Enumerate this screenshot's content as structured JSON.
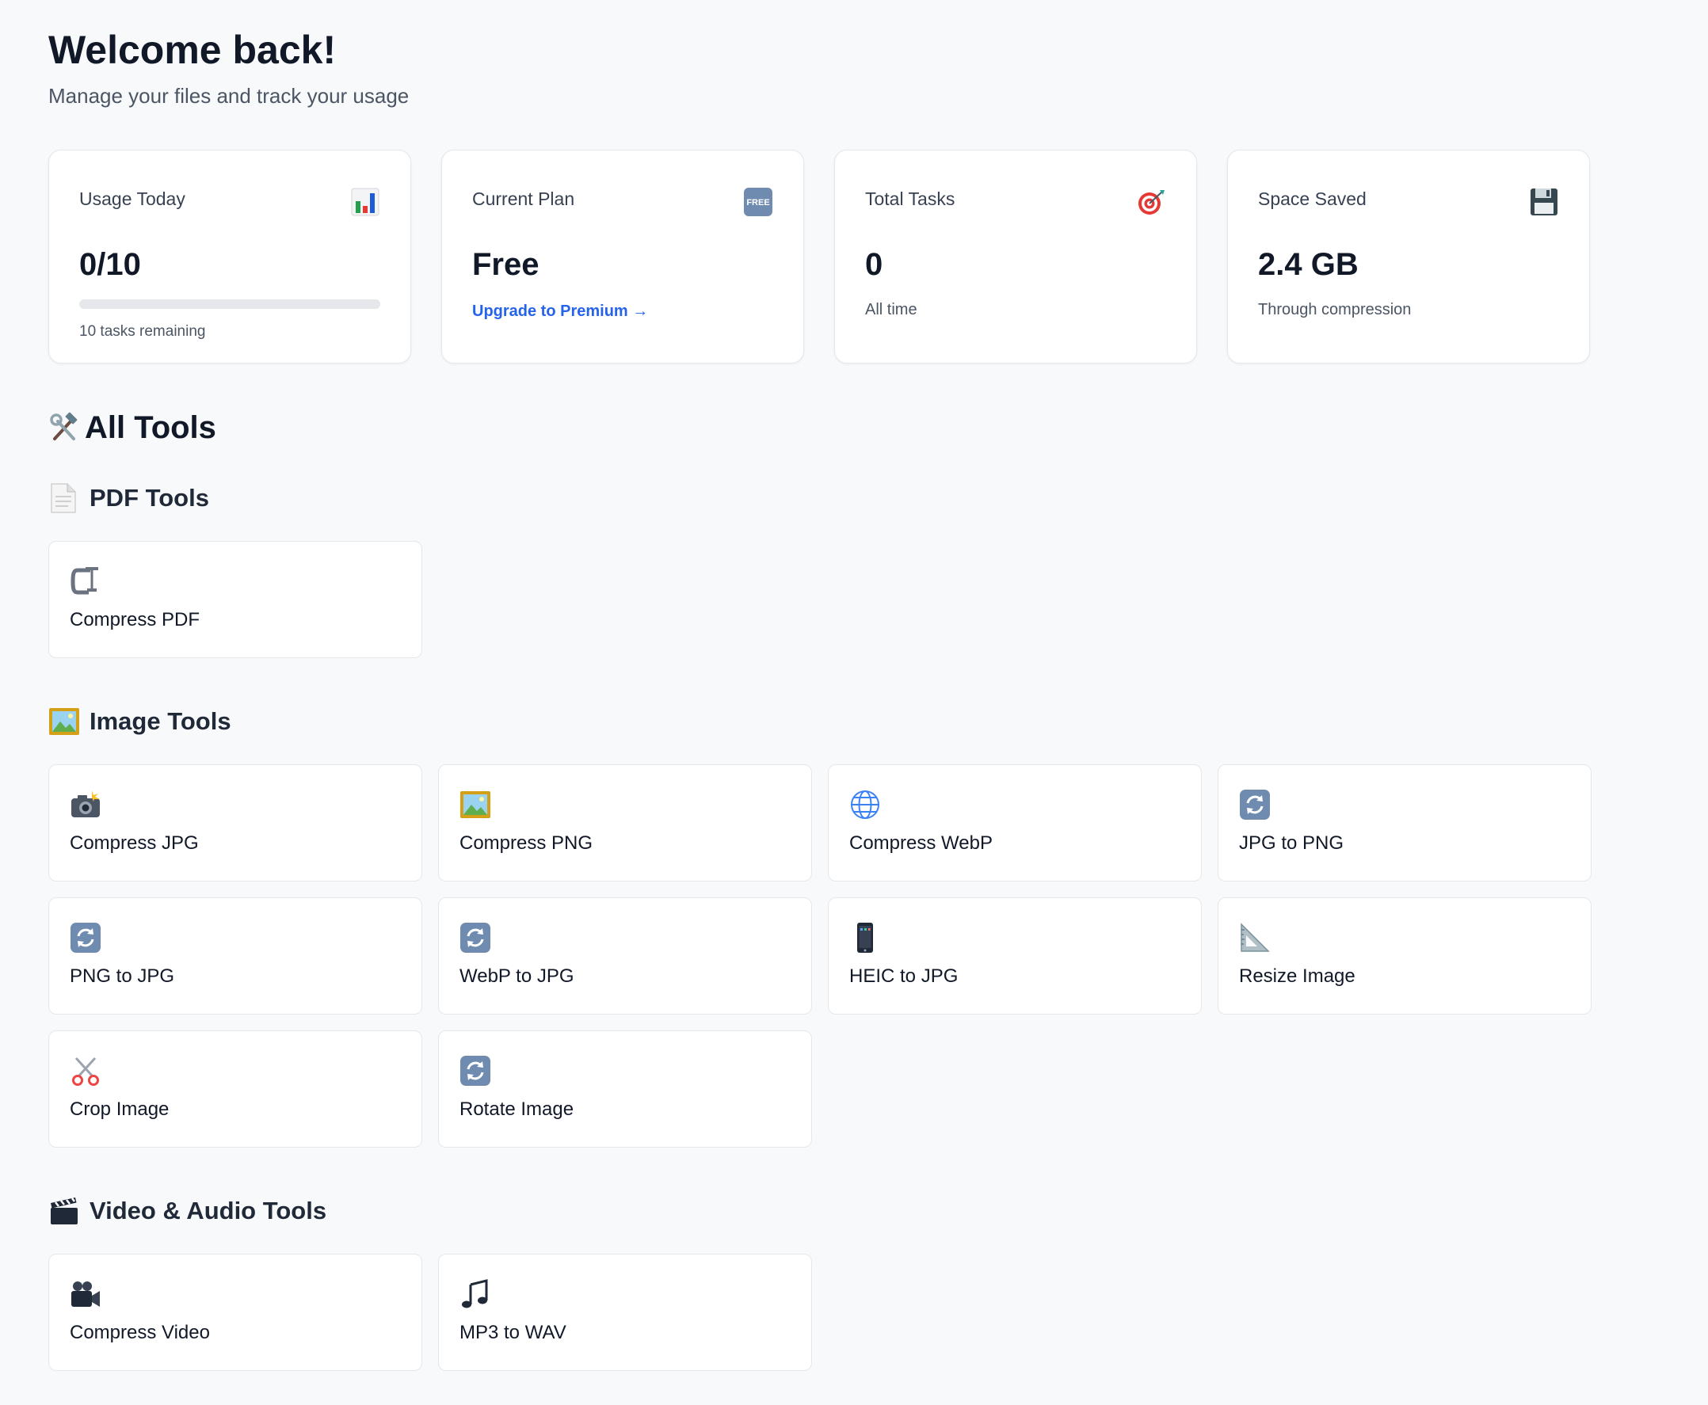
{
  "header": {
    "title": "Welcome back!",
    "subtitle": "Manage your files and track your usage"
  },
  "stats": {
    "usage": {
      "label": "Usage Today",
      "icon": "bar-chart-icon",
      "value": "0/10",
      "progress_fraction": 0.0,
      "sub": "10 tasks remaining"
    },
    "plan": {
      "label": "Current Plan",
      "icon": "free-badge-icon",
      "badge_text": "FREE",
      "value": "Free",
      "link": "Upgrade to Premium →"
    },
    "tasks": {
      "label": "Total Tasks",
      "icon": "target-icon",
      "value": "0",
      "sub": "All time"
    },
    "space": {
      "label": "Space Saved",
      "icon": "floppy-disk-icon",
      "value": "2.4 GB",
      "sub": "Through compression"
    }
  },
  "all_tools": {
    "title": "All Tools",
    "icon": "hammer-wrench-icon"
  },
  "sections": {
    "pdf": {
      "title": "PDF Tools",
      "icon": "page-icon",
      "tools": [
        {
          "label": "Compress PDF",
          "icon": "clamp-icon"
        }
      ]
    },
    "image": {
      "title": "Image Tools",
      "icon": "framed-picture-icon",
      "tools": [
        {
          "label": "Compress JPG",
          "icon": "camera-flash-icon"
        },
        {
          "label": "Compress PNG",
          "icon": "framed-picture-icon"
        },
        {
          "label": "Compress WebP",
          "icon": "globe-icon"
        },
        {
          "label": "JPG to PNG",
          "icon": "refresh-icon"
        },
        {
          "label": "PNG to JPG",
          "icon": "refresh-icon"
        },
        {
          "label": "WebP to JPG",
          "icon": "refresh-icon"
        },
        {
          "label": "HEIC to JPG",
          "icon": "mobile-phone-icon"
        },
        {
          "label": "Resize Image",
          "icon": "triangular-ruler-icon"
        },
        {
          "label": "Crop Image",
          "icon": "scissors-icon"
        },
        {
          "label": "Rotate Image",
          "icon": "refresh-icon"
        }
      ]
    },
    "video": {
      "title": "Video & Audio Tools",
      "icon": "clapper-board-icon",
      "tools": [
        {
          "label": "Compress Video",
          "icon": "video-camera-icon"
        },
        {
          "label": "MP3 to WAV",
          "icon": "music-note-icon"
        }
      ]
    }
  },
  "colors": {
    "accent": "#2563eb",
    "background": "#f8f9fb",
    "card_border": "#e5e7eb"
  }
}
